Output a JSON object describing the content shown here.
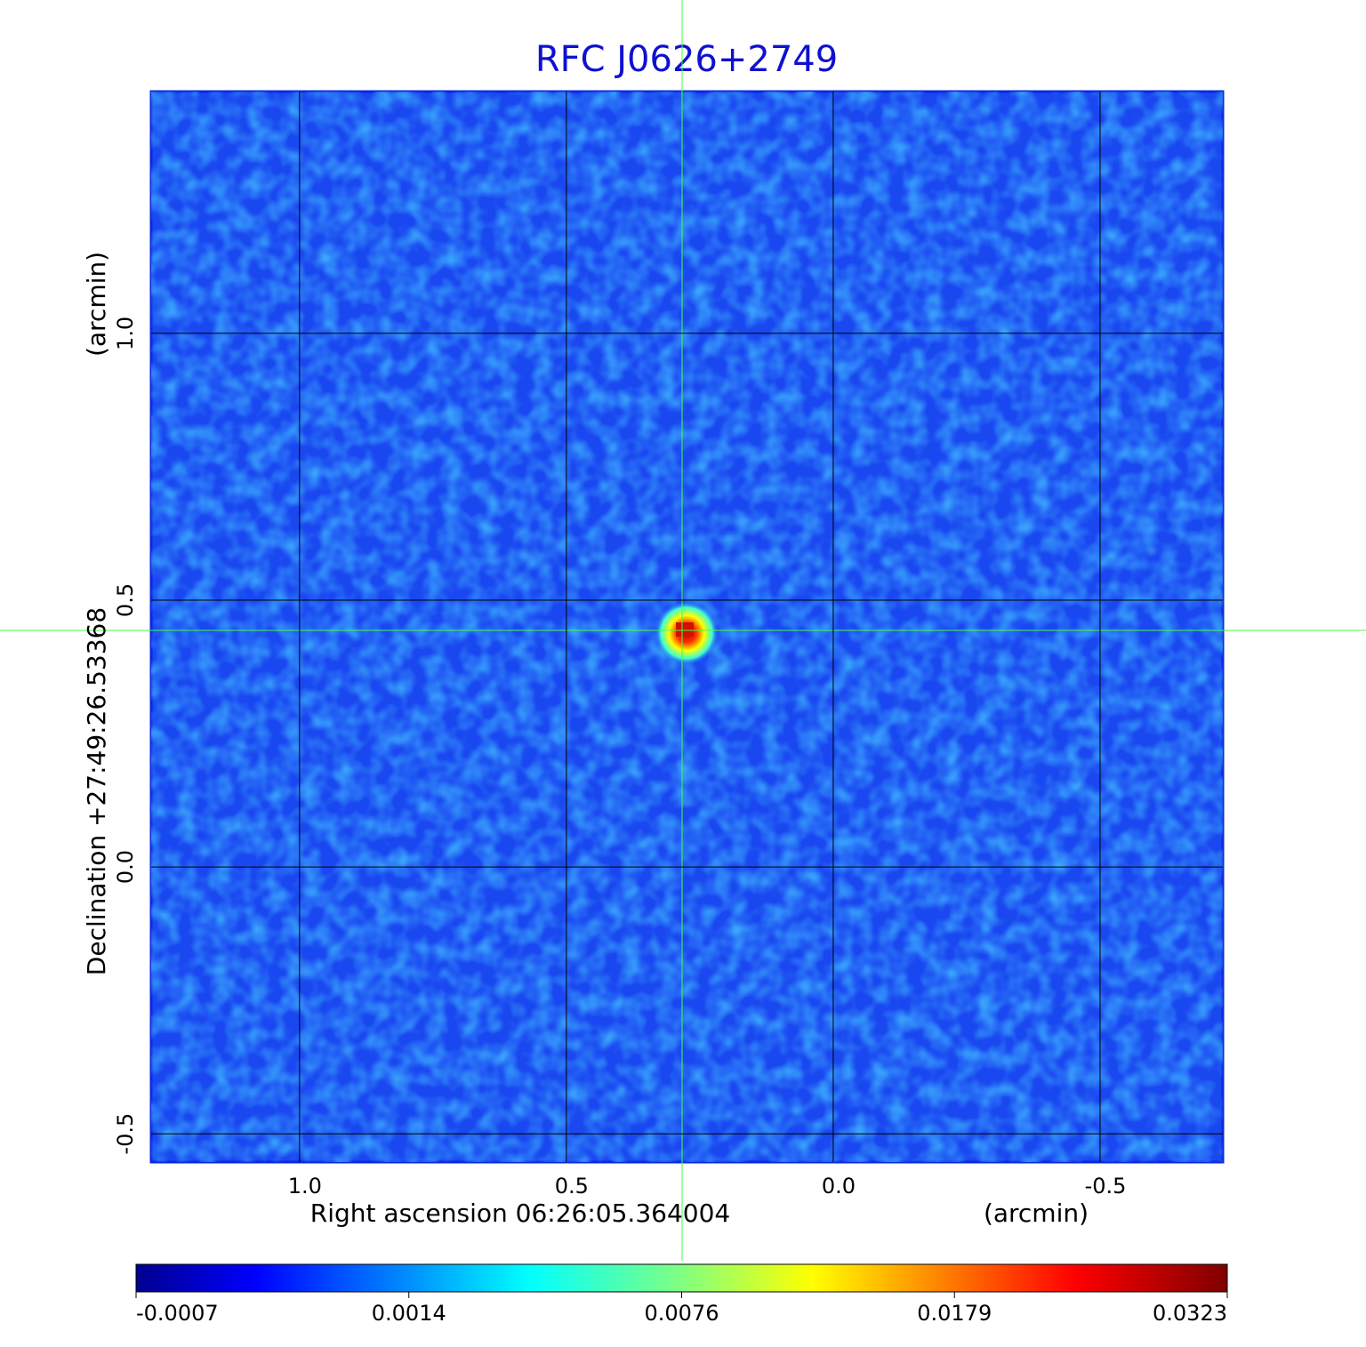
{
  "chart_data": {
    "type": "image",
    "title": "RFC J0626+2749",
    "x_label": "Right ascension  06:26:05.364004",
    "x_unit": "(arcmin)",
    "y_label": "Declination  +27:49:26.53368",
    "y_unit": "(arcmin)",
    "xlim": [
      1.278,
      -0.73
    ],
    "ylim": [
      -0.553,
      1.453
    ],
    "xticks": [
      {
        "value": 1,
        "label": "1.0"
      },
      0.5,
      {
        "value": 0,
        "label": "0.0"
      },
      -0.5
    ],
    "yticks": [
      -0.5,
      {
        "value": 0,
        "label": "0.0"
      },
      0.5,
      {
        "value": 1,
        "label": "1.0"
      }
    ],
    "grid": true,
    "colorbar_ticks": [
      -0.0007,
      0.0014,
      0.0076,
      0.0179,
      0.0323
    ]
  }
}
